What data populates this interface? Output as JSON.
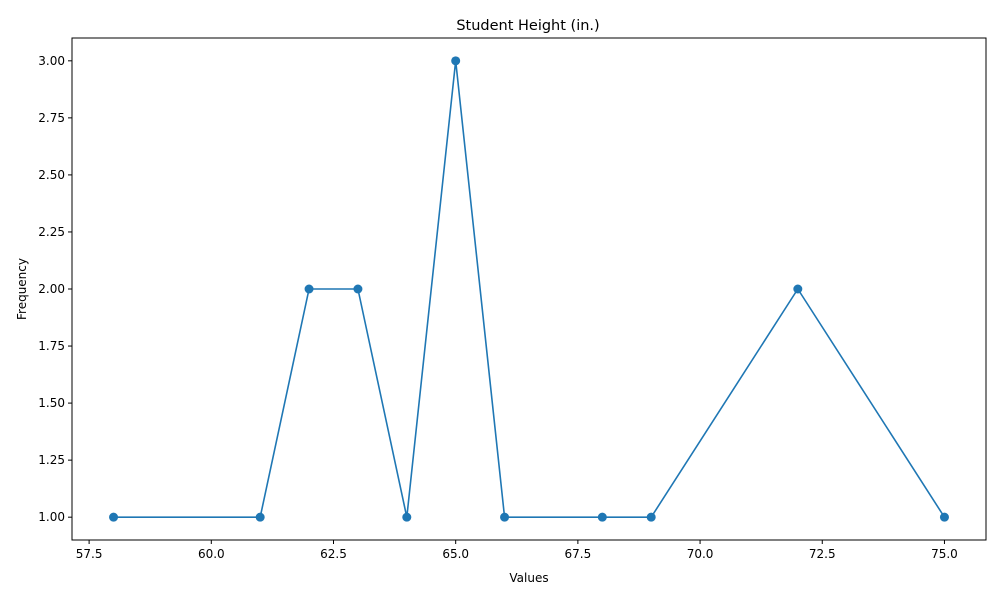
{
  "chart_data": {
    "type": "line",
    "title": "Student Height (in.)",
    "xlabel": "Values",
    "ylabel": "Frequency",
    "x": [
      58,
      61,
      62,
      63,
      64,
      65,
      66,
      68,
      69,
      72,
      75
    ],
    "series": [
      {
        "values": [
          1,
          1,
          2,
          2,
          1,
          3,
          1,
          1,
          1,
          2,
          1
        ]
      }
    ],
    "xlim": [
      57.15,
      75.85
    ],
    "ylim": [
      0.9,
      3.1
    ],
    "xticks": [
      57.5,
      60.0,
      62.5,
      65.0,
      67.5,
      70.0,
      72.5,
      75.0
    ],
    "xtick_labels": [
      "57.5",
      "60.0",
      "62.5",
      "65.0",
      "67.5",
      "70.0",
      "72.5",
      "75.0"
    ],
    "yticks": [
      1.0,
      1.25,
      1.5,
      1.75,
      2.0,
      2.25,
      2.5,
      2.75,
      3.0
    ],
    "ytick_labels": [
      "1.00",
      "1.25",
      "1.50",
      "1.75",
      "2.00",
      "2.25",
      "2.50",
      "2.75",
      "3.00"
    ],
    "grid": false,
    "marker": "circle",
    "color": "#1f77b4"
  }
}
